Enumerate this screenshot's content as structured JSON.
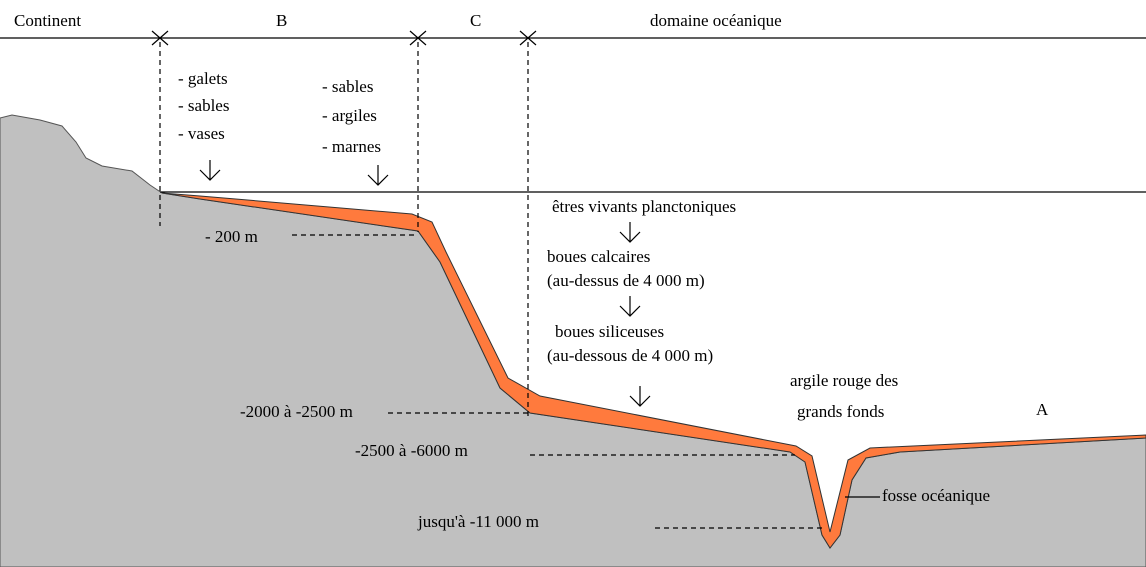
{
  "header": {
    "labels": [
      "Continent",
      "B",
      "C",
      "domaine océanique"
    ]
  },
  "zone_b": {
    "left": [
      "- galets",
      "- sables",
      "- vases"
    ],
    "right": [
      "- sables",
      "- argiles",
      "- marnes"
    ]
  },
  "ocean": {
    "sediments": [
      "êtres vivants planctoniques",
      "boues calcaires",
      "(au-dessus de 4 000 m)",
      "boues siliceuses",
      "(au-dessous de 4 000 m)",
      "argile rouge des",
      "grands fonds"
    ],
    "zone_a": "A",
    "trench": "fosse océanique"
  },
  "depths": [
    "- 200 m",
    "-2000 à -2500 m",
    "-2500 à -6000 m",
    "jusqu'à -11 000 m"
  ]
}
